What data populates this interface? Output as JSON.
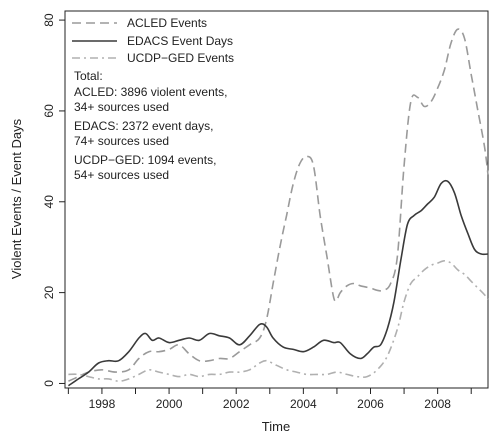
{
  "chart_data": {
    "type": "line",
    "title": "",
    "xlabel": "Time",
    "ylabel": "Violent Events / Event Days",
    "xlim": [
      1996.9,
      2009.5
    ],
    "ylim": [
      -1,
      82
    ],
    "x_ticks": [
      1998,
      2000,
      2002,
      2004,
      2006,
      2008
    ],
    "y_ticks": [
      0,
      20,
      40,
      60,
      80
    ],
    "grid": false,
    "legend_position": "top-left",
    "colors": {
      "acled": "#9a9a9a",
      "edacs": "#3a3a3a",
      "ucdp": "#b0b0b0"
    },
    "series": [
      {
        "name": "ACLED Events",
        "style": "dashed",
        "x": [
          1997.0,
          1997.3,
          1997.6,
          1998.0,
          1998.4,
          1998.8,
          1999.1,
          1999.4,
          1999.7,
          2000.0,
          2000.3,
          2000.6,
          2000.9,
          2001.2,
          2001.5,
          2001.8,
          2002.1,
          2002.4,
          2002.7,
          2002.9,
          2003.1,
          2003.3,
          2003.5,
          2003.7,
          2003.9,
          2004.1,
          2004.3,
          2004.5,
          2004.7,
          2004.9,
          2005.0,
          2005.1,
          2005.3,
          2005.5,
          2005.7,
          2006.0,
          2006.2,
          2006.4,
          2006.6,
          2006.8,
          2007.0,
          2007.2,
          2007.4,
          2007.6,
          2007.8,
          2008.0,
          2008.2,
          2008.4,
          2008.6,
          2008.8,
          2009.0,
          2009.2,
          2009.4,
          2009.5
        ],
        "y": [
          0.5,
          1.5,
          2.5,
          3.0,
          2.5,
          3.0,
          5.5,
          7.0,
          7.0,
          7.5,
          8.5,
          6.5,
          5.0,
          5.0,
          5.5,
          5.5,
          7.0,
          8.5,
          10.0,
          14.0,
          22.0,
          30.0,
          37.0,
          44.0,
          48.5,
          50.0,
          48.0,
          37.0,
          28.0,
          19.0,
          18.5,
          20.0,
          21.5,
          22.0,
          21.5,
          21.0,
          20.5,
          20.5,
          22.0,
          28.0,
          48.0,
          62.0,
          63.0,
          61.0,
          62.0,
          65.0,
          69.0,
          75.0,
          78.0,
          76.0,
          68.0,
          60.0,
          52.0,
          46.0
        ]
      },
      {
        "name": "EDACS Event Days",
        "style": "solid",
        "x": [
          1997.0,
          1997.3,
          1997.6,
          1997.9,
          1998.2,
          1998.5,
          1998.8,
          1999.1,
          1999.3,
          1999.5,
          1999.7,
          2000.0,
          2000.3,
          2000.6,
          2000.9,
          2001.2,
          2001.5,
          2001.8,
          2002.1,
          2002.4,
          2002.7,
          2002.9,
          2003.1,
          2003.4,
          2003.7,
          2004.0,
          2004.3,
          2004.6,
          2004.9,
          2005.1,
          2005.4,
          2005.7,
          2005.9,
          2006.1,
          2006.3,
          2006.5,
          2006.7,
          2006.9,
          2007.1,
          2007.3,
          2007.5,
          2007.7,
          2007.9,
          2008.1,
          2008.3,
          2008.5,
          2008.7,
          2008.9,
          2009.1,
          2009.3,
          2009.5
        ],
        "y": [
          -0.5,
          1.0,
          2.5,
          4.5,
          5.0,
          5.0,
          7.0,
          10.0,
          11.0,
          9.5,
          10.0,
          9.0,
          9.5,
          10.0,
          9.5,
          11.0,
          10.5,
          10.0,
          8.5,
          10.5,
          13.0,
          12.5,
          10.0,
          8.0,
          7.5,
          7.0,
          8.0,
          9.5,
          9.0,
          9.0,
          6.5,
          5.5,
          6.5,
          8.0,
          8.5,
          12.0,
          18.0,
          27.0,
          35.0,
          37.0,
          38.0,
          39.5,
          41.0,
          44.0,
          44.5,
          42.0,
          37.0,
          33.0,
          29.5,
          28.5,
          28.5
        ]
      },
      {
        "name": "UCDP−GED Events",
        "style": "dashdot",
        "x": [
          1997.0,
          1997.3,
          1997.6,
          1997.9,
          1998.2,
          1998.5,
          1998.8,
          1999.1,
          1999.4,
          1999.7,
          2000.0,
          2000.3,
          2000.6,
          2000.9,
          2001.2,
          2001.5,
          2001.8,
          2002.1,
          2002.4,
          2002.7,
          2002.9,
          2003.2,
          2003.5,
          2003.8,
          2004.1,
          2004.4,
          2004.7,
          2005.0,
          2005.3,
          2005.6,
          2005.9,
          2006.2,
          2006.5,
          2006.8,
          2007.0,
          2007.2,
          2007.4,
          2007.6,
          2007.8,
          2008.0,
          2008.2,
          2008.4,
          2008.6,
          2008.8,
          2009.0,
          2009.2,
          2009.4,
          2009.5
        ],
        "y": [
          2.0,
          2.0,
          1.5,
          1.0,
          1.0,
          0.5,
          1.0,
          2.0,
          3.0,
          2.5,
          2.0,
          1.5,
          2.0,
          1.5,
          2.0,
          2.0,
          2.5,
          2.5,
          3.0,
          4.5,
          5.0,
          4.0,
          3.0,
          2.5,
          2.0,
          2.0,
          2.0,
          2.5,
          2.0,
          1.5,
          1.5,
          3.0,
          6.0,
          12.0,
          18.0,
          22.0,
          23.5,
          25.0,
          26.0,
          26.5,
          27.0,
          26.5,
          25.0,
          24.0,
          22.5,
          21.0,
          19.5,
          18.5
        ]
      }
    ],
    "totals": {
      "heading": "Total:",
      "lines": [
        "ACLED: 3896 violent events,",
        "34+ sources used",
        "EDACS: 2372 event days,",
        "74+ sources used",
        "UCDP−GED: 1094 events,",
        "54+ sources used"
      ]
    }
  }
}
